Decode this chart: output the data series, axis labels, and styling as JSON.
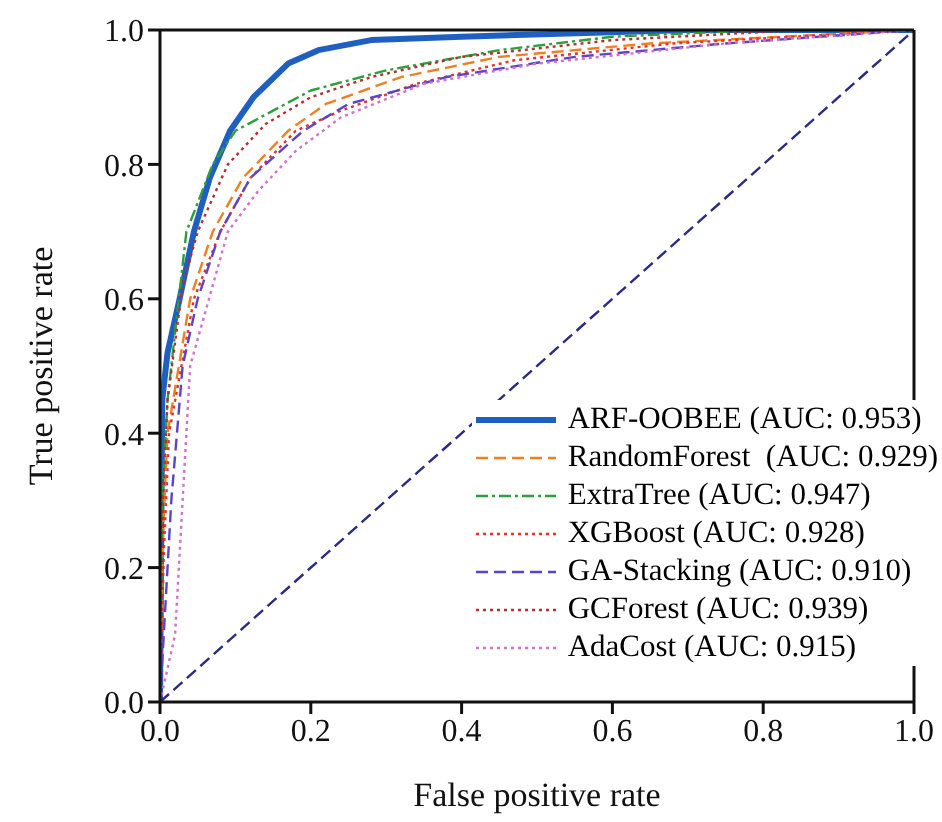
{
  "chart_data": {
    "type": "line",
    "xlabel": "False positive rate",
    "ylabel": "True positive rate",
    "xlim": [
      0,
      1
    ],
    "ylim": [
      0,
      1
    ],
    "xticks": [
      {
        "value": 0,
        "label": "0.0"
      },
      0.2,
      0.4,
      0.6,
      0.8,
      {
        "value": 1,
        "label": "1.0"
      }
    ],
    "yticks": [
      {
        "value": 0,
        "label": "0.0"
      },
      0.2,
      0.4,
      0.6,
      0.8,
      {
        "value": 1,
        "label": "1.0"
      }
    ],
    "grid": false,
    "legend": "bottom right",
    "marker": "none",
    "series": [
      {
        "type": "line",
        "x": [
          0,
          0.003,
          0.01,
          0.026,
          0.045,
          0.066,
          0.093,
          0.124,
          0.17,
          0.21,
          0.28,
          0.4,
          0.7,
          1
        ],
        "values": [
          0,
          0.45,
          0.52,
          0.6,
          0.7,
          0.78,
          0.85,
          0.9,
          0.95,
          0.97,
          0.985,
          0.99,
          1,
          1
        ],
        "color": "#1f5fbf",
        "line_style": "solid",
        "name": "ARF-OOBEE (AUC: 0.953)"
      },
      {
        "type": "line",
        "x": [
          0,
          0.004,
          0.01,
          0.04,
          0.07,
          0.11,
          0.17,
          0.22,
          0.32,
          0.45,
          0.65,
          1
        ],
        "values": [
          0,
          0.25,
          0.4,
          0.6,
          0.7,
          0.78,
          0.85,
          0.89,
          0.93,
          0.96,
          0.98,
          1
        ],
        "color": "#f07f20",
        "line_style": "dashed",
        "name": "RandomForest  (AUC: 0.929)"
      },
      {
        "type": "line",
        "x": [
          0,
          0.003,
          0.01,
          0.035,
          0.07,
          0.1,
          0.15,
          0.2,
          0.3,
          0.45,
          0.6,
          0.8,
          1
        ],
        "values": [
          0,
          0.3,
          0.45,
          0.7,
          0.8,
          0.85,
          0.88,
          0.91,
          0.94,
          0.97,
          0.99,
          1,
          1
        ],
        "color": "#2e9e3c",
        "line_style": "dashdot",
        "name": "ExtraTree (AUC: 0.947)"
      },
      {
        "type": "line",
        "x": [
          0,
          0.005,
          0.012,
          0.045,
          0.08,
          0.12,
          0.18,
          0.24,
          0.34,
          0.47,
          0.68,
          1
        ],
        "values": [
          0,
          0.22,
          0.4,
          0.6,
          0.7,
          0.78,
          0.85,
          0.88,
          0.92,
          0.955,
          0.98,
          1
        ],
        "color": "#e8302a",
        "line_style": "dotted",
        "name": "XGBoost (AUC: 0.928)"
      },
      {
        "type": "line",
        "x": [
          0,
          0.005,
          0.015,
          0.03,
          0.05,
          0.08,
          0.12,
          0.19,
          0.25,
          0.38,
          0.55,
          0.75,
          1
        ],
        "values": [
          0,
          0.1,
          0.3,
          0.5,
          0.6,
          0.7,
          0.78,
          0.85,
          0.89,
          0.93,
          0.96,
          0.98,
          1
        ],
        "color": "#5a45c8",
        "line_style": "dashed",
        "name": "GA-Stacking (AUC: 0.910)"
      },
      {
        "type": "line",
        "x": [
          0,
          0.004,
          0.01,
          0.03,
          0.05,
          0.09,
          0.14,
          0.2,
          0.28,
          0.4,
          0.6,
          0.85,
          1
        ],
        "values": [
          0,
          0.3,
          0.45,
          0.62,
          0.7,
          0.8,
          0.86,
          0.9,
          0.93,
          0.96,
          0.985,
          1,
          1
        ],
        "color": "#b03030",
        "line_style": "dotted",
        "name": "GCForest (AUC: 0.939)"
      },
      {
        "type": "line",
        "x": [
          0,
          0.01,
          0.02,
          0.04,
          0.09,
          0.13,
          0.18,
          0.24,
          0.35,
          0.5,
          0.75,
          1
        ],
        "values": [
          0,
          0.05,
          0.1,
          0.5,
          0.7,
          0.76,
          0.82,
          0.87,
          0.92,
          0.95,
          0.98,
          1
        ],
        "color": "#d070d0",
        "line_style": "dotted",
        "name": "AdaCost (AUC: 0.915)"
      },
      {
        "type": "line",
        "x": [
          0,
          1
        ],
        "values": [
          0,
          1
        ],
        "color": "#2a2a80",
        "line_style": "dashed"
      }
    ]
  }
}
